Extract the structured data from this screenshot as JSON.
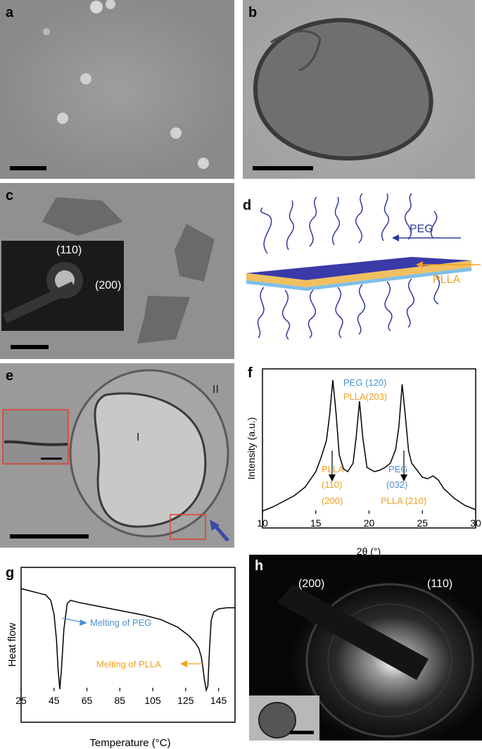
{
  "panels": {
    "a": {
      "label": "a"
    },
    "b": {
      "label": "b"
    },
    "c": {
      "label": "c",
      "diffraction": [
        "(110)",
        "(200)"
      ]
    },
    "d": {
      "label": "d",
      "arrow_peg": "PEG",
      "arrow_plla": "PLLA"
    },
    "e": {
      "label": "e",
      "region_inner": "I",
      "region_outer": "II"
    },
    "f": {
      "label": "f"
    },
    "g": {
      "label": "g"
    },
    "h": {
      "label": "h",
      "diffraction": [
        "(200)",
        "(110)"
      ]
    }
  },
  "colors": {
    "peg": "#4a8fd0",
    "plla": "#f0a020",
    "sheet": "#3a3aa8",
    "arrow_blue": "#2f3a9a",
    "inset_box": "#e0402a"
  },
  "chart_data": [
    {
      "panel": "f",
      "type": "line",
      "xlabel": "2θ (°)",
      "ylabel": "Intensity (a.u.)",
      "xlim": [
        10,
        30
      ],
      "xticks": [
        10,
        15,
        20,
        25,
        30
      ],
      "x": [
        10,
        11,
        12,
        13,
        14,
        15,
        15.5,
        16,
        16.3,
        16.6,
        16.9,
        17.2,
        17.6,
        18,
        18.5,
        18.8,
        19.1,
        19.4,
        19.8,
        20.5,
        21,
        21.5,
        22,
        22.5,
        22.8,
        23.1,
        23.4,
        23.7,
        24,
        24.5,
        25,
        25.5,
        26,
        26.5,
        27,
        28,
        29,
        30
      ],
      "y": [
        0.02,
        0.05,
        0.09,
        0.13,
        0.19,
        0.3,
        0.4,
        0.52,
        0.7,
        0.95,
        0.72,
        0.42,
        0.32,
        0.3,
        0.36,
        0.55,
        0.8,
        0.55,
        0.33,
        0.3,
        0.31,
        0.33,
        0.36,
        0.46,
        0.62,
        0.92,
        0.7,
        0.45,
        0.36,
        0.31,
        0.26,
        0.25,
        0.27,
        0.24,
        0.18,
        0.11,
        0.06,
        0.03
      ],
      "annotations": [
        {
          "text": "PEG (120)",
          "color": "#4a8fd0"
        },
        {
          "text": "PLLA(203)",
          "color": "#f0a020"
        },
        {
          "text": "PLLA",
          "color": "#f0a020"
        },
        {
          "text": "(110)",
          "color": "#f0a020"
        },
        {
          "text": "(200)",
          "color": "#f0a020"
        },
        {
          "text": "PEG",
          "color": "#4a8fd0"
        },
        {
          "text": "(032)",
          "color": "#4a8fd0"
        },
        {
          "text": "PLLA (210)",
          "color": "#f0a020"
        }
      ]
    },
    {
      "panel": "g",
      "type": "line",
      "xlabel": "Temperature (°C)",
      "ylabel": "Heat flow",
      "xlim": [
        25,
        155
      ],
      "xticks": [
        25,
        45,
        65,
        85,
        105,
        125,
        145
      ],
      "x": [
        25,
        30,
        35,
        40,
        43,
        45,
        46.5,
        47.5,
        48.5,
        49.5,
        51,
        53,
        55,
        60,
        70,
        80,
        90,
        100,
        110,
        120,
        127,
        131,
        133,
        134.5,
        135.5,
        136.5,
        137.5,
        138.5,
        139.5,
        140.5,
        142,
        145,
        150,
        155
      ],
      "y": [
        0.96,
        0.94,
        0.92,
        0.9,
        0.85,
        0.72,
        0.48,
        0.2,
        0.02,
        0.2,
        0.58,
        0.82,
        0.85,
        0.83,
        0.8,
        0.77,
        0.74,
        0.71,
        0.67,
        0.6,
        0.52,
        0.45,
        0.4,
        0.32,
        0.22,
        0.1,
        0.01,
        0.05,
        0.4,
        0.66,
        0.74,
        0.77,
        0.78,
        0.78
      ],
      "annotations": [
        {
          "text": "Melting of PEG",
          "color": "#4a8fd0"
        },
        {
          "text": "Melting of PLLA",
          "color": "#f0a020"
        }
      ]
    }
  ]
}
